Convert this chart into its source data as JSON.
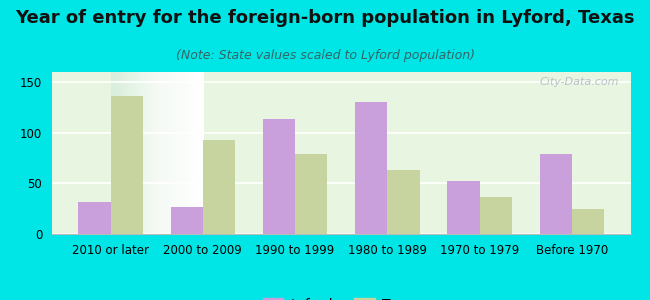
{
  "title": "Year of entry for the foreign-born population in Lyford, Texas",
  "subtitle": "(Note: State values scaled to Lyford population)",
  "categories": [
    "2010 or later",
    "2000 to 2009",
    "1990 to 1999",
    "1980 to 1989",
    "1970 to 1979",
    "Before 1970"
  ],
  "lyford_values": [
    32,
    27,
    114,
    130,
    52,
    79
  ],
  "texas_values": [
    136,
    93,
    79,
    63,
    37,
    25
  ],
  "lyford_color": "#c9a0dc",
  "texas_color": "#c8d4a0",
  "background_color": "#00e5e5",
  "ylim": [
    0,
    160
  ],
  "yticks": [
    0,
    50,
    100,
    150
  ],
  "bar_width": 0.35,
  "title_fontsize": 13,
  "subtitle_fontsize": 9,
  "tick_fontsize": 8.5,
  "legend_fontsize": 10,
  "watermark_text": "City-Data.com"
}
